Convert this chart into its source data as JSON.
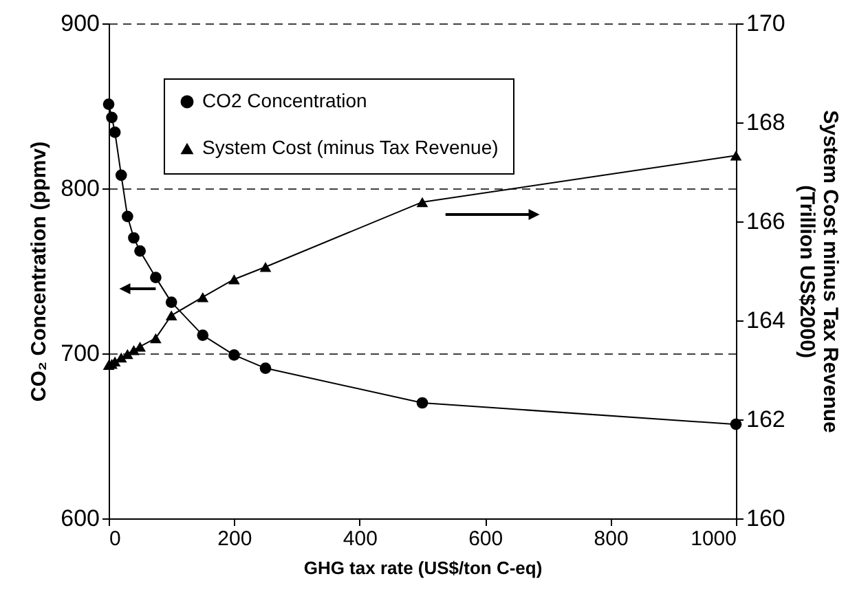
{
  "chart_data": {
    "type": "line",
    "xlabel": "GHG tax rate (US$/ton C-eq)",
    "ylabel": "CO₂ Concentration (ppmv)",
    "y2label": "System Cost minus Tax Revenue\n(Trillion US$2000)",
    "x": [
      0,
      5,
      10,
      20,
      30,
      40,
      50,
      75,
      100,
      150,
      200,
      250,
      500,
      1000
    ],
    "series": [
      {
        "name": "CO2 Concentration",
        "color": "#000000",
        "marker": "circle",
        "values": [
          851,
          843,
          834,
          808,
          783,
          770,
          762,
          746,
          731,
          711,
          699,
          691,
          670,
          657
        ]
      },
      {
        "name": "System Cost (minus Tax Revenue)",
        "color": "#000000",
        "marker": "triangle",
        "axis": "y2",
        "values": [
          163.1,
          163.12,
          163.17,
          163.25,
          163.32,
          163.4,
          163.47,
          163.64,
          164.1,
          164.47,
          164.83,
          165.08,
          166.39,
          167.33
        ]
      }
    ],
    "xlim": [
      0,
      1000
    ],
    "xticks": [
      0,
      200,
      400,
      600,
      800,
      1000
    ],
    "ylim": [
      600,
      900
    ],
    "yticks": [
      600,
      700,
      800,
      900
    ],
    "y2lim": [
      160,
      170
    ],
    "y2ticks": [
      160,
      162,
      164,
      166,
      168,
      170
    ],
    "grid": "y",
    "line_style": "solid",
    "legend": "top left"
  }
}
